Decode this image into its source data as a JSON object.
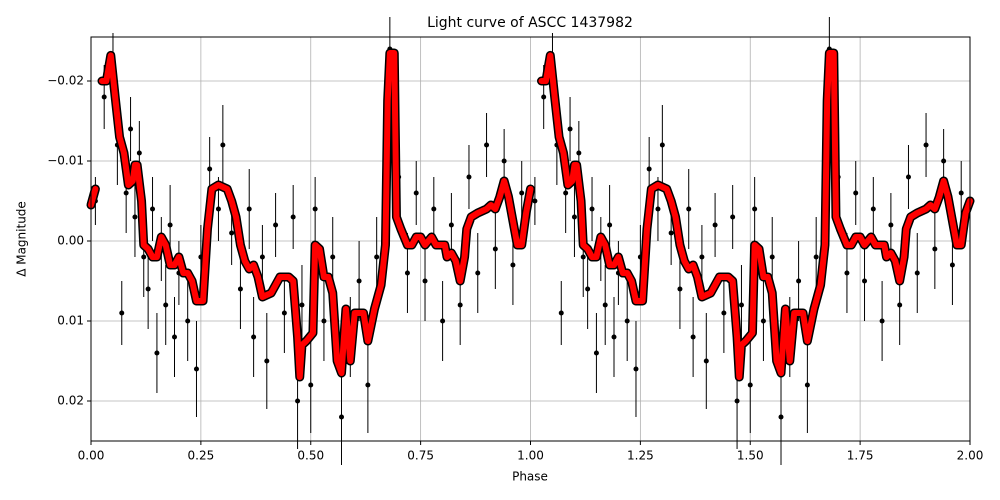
{
  "chart_data": {
    "type": "scatter",
    "title": "Light curve of ASCC 1437982",
    "x_label": "Phase",
    "y_label": "Δ Magnitude",
    "xlim": [
      0,
      2
    ],
    "ylim": [
      -0.0255,
      0.025
    ],
    "y_inverted": true,
    "grid": true,
    "xticks": [
      {
        "value": 0,
        "label": "0.00"
      },
      {
        "value": 0.25,
        "label": "0.25"
      },
      {
        "value": 0.5,
        "label": "0.50"
      },
      {
        "value": 0.75,
        "label": "0.75"
      },
      {
        "value": 1,
        "label": "1.00"
      },
      {
        "value": 1.25,
        "label": "1.25"
      },
      {
        "value": 1.5,
        "label": "1.50"
      },
      {
        "value": 1.75,
        "label": "1.75"
      },
      {
        "value": 2,
        "label": "2.00"
      }
    ],
    "yticks": [
      {
        "value": -0.02,
        "label": "−0.02"
      },
      {
        "value": -0.01,
        "label": "−0.01"
      },
      {
        "value": 0,
        "label": "0.00"
      },
      0.01,
      0.02
    ],
    "points": {
      "color": "#000000",
      "x": [
        0.01,
        0.03,
        0.05,
        0.06,
        0.07,
        0.08,
        0.09,
        0.1,
        0.11,
        0.12,
        0.13,
        0.14,
        0.15,
        0.16,
        0.17,
        0.18,
        0.19,
        0.2,
        0.22,
        0.24,
        0.25,
        0.27,
        0.29,
        0.3,
        0.32,
        0.34,
        0.36,
        0.37,
        0.39,
        0.4,
        0.42,
        0.44,
        0.46,
        0.47,
        0.48,
        0.5,
        0.51,
        0.53,
        0.55,
        0.57,
        0.59,
        0.61,
        0.63,
        0.65,
        0.67,
        0.68,
        0.7,
        0.72,
        0.74,
        0.76,
        0.78,
        0.8,
        0.82,
        0.84,
        0.86,
        0.88,
        0.9,
        0.92,
        0.94,
        0.96,
        0.98,
        1.01,
        1.03,
        1.05,
        1.06,
        1.07,
        1.08,
        1.09,
        1.1,
        1.11,
        1.12,
        1.13,
        1.14,
        1.15,
        1.16,
        1.17,
        1.18,
        1.19,
        1.2,
        1.22,
        1.24,
        1.25,
        1.27,
        1.29,
        1.3,
        1.32,
        1.34,
        1.36,
        1.37,
        1.39,
        1.4,
        1.42,
        1.44,
        1.46,
        1.47,
        1.48,
        1.5,
        1.51,
        1.53,
        1.55,
        1.57,
        1.59,
        1.61,
        1.63,
        1.65,
        1.67,
        1.68,
        1.7,
        1.72,
        1.74,
        1.76,
        1.78,
        1.8,
        1.82,
        1.84,
        1.86,
        1.88,
        1.9,
        1.92,
        1.94,
        1.96,
        1.98
      ],
      "values": [
        -0.005,
        -0.018,
        -0.022,
        -0.012,
        0.009,
        -0.006,
        -0.014,
        -0.003,
        -0.011,
        0.002,
        0.006,
        -0.004,
        0.014,
        0.001,
        0.008,
        -0.002,
        0.012,
        0.004,
        0.01,
        0.016,
        0.002,
        -0.009,
        -0.004,
        -0.012,
        -0.001,
        0.006,
        -0.004,
        0.012,
        0.002,
        0.015,
        -0.002,
        0.009,
        -0.003,
        0.02,
        0.008,
        0.018,
        -0.004,
        0.01,
        0.002,
        0.022,
        0.012,
        0.005,
        0.018,
        0.002,
        -0.008,
        -0.024,
        -0.008,
        0.004,
        -0.006,
        0.005,
        -0.004,
        0.01,
        -0.002,
        0.008,
        -0.008,
        0.004,
        -0.012,
        0.001,
        -0.01,
        0.003,
        -0.006,
        -0.005,
        -0.018,
        -0.022,
        -0.012,
        0.009,
        -0.006,
        -0.014,
        -0.003,
        -0.011,
        0.002,
        0.006,
        -0.004,
        0.014,
        0.001,
        0.008,
        -0.002,
        0.012,
        0.004,
        0.01,
        0.016,
        0.002,
        -0.009,
        -0.004,
        -0.012,
        -0.001,
        0.006,
        -0.004,
        0.012,
        0.002,
        0.015,
        -0.002,
        0.009,
        -0.003,
        0.02,
        0.008,
        0.018,
        -0.004,
        0.01,
        0.002,
        0.022,
        0.012,
        0.005,
        0.018,
        0.002,
        -0.008,
        -0.024,
        -0.008,
        0.004,
        -0.006,
        0.005,
        -0.004,
        0.01,
        -0.002,
        0.008,
        -0.008,
        0.004,
        -0.012,
        0.001,
        -0.01,
        0.003,
        -0.006
      ],
      "errors": [
        0.003,
        0.004,
        0.004,
        0.005,
        0.004,
        0.005,
        0.004,
        0.005,
        0.004,
        0.005,
        0.005,
        0.004,
        0.005,
        0.004,
        0.005,
        0.005,
        0.005,
        0.004,
        0.005,
        0.006,
        0.004,
        0.004,
        0.004,
        0.005,
        0.004,
        0.005,
        0.005,
        0.005,
        0.004,
        0.006,
        0.004,
        0.005,
        0.004,
        0.006,
        0.005,
        0.006,
        0.004,
        0.005,
        0.005,
        0.006,
        0.005,
        0.005,
        0.006,
        0.005,
        0.004,
        0.004,
        0.004,
        0.005,
        0.004,
        0.005,
        0.004,
        0.005,
        0.004,
        0.005,
        0.004,
        0.005,
        0.004,
        0.005,
        0.004,
        0.005,
        0.004,
        0.003,
        0.004,
        0.004,
        0.005,
        0.004,
        0.005,
        0.004,
        0.005,
        0.004,
        0.005,
        0.005,
        0.004,
        0.005,
        0.004,
        0.005,
        0.005,
        0.005,
        0.004,
        0.005,
        0.006,
        0.004,
        0.004,
        0.004,
        0.005,
        0.004,
        0.005,
        0.005,
        0.005,
        0.004,
        0.006,
        0.004,
        0.005,
        0.004,
        0.006,
        0.005,
        0.006,
        0.004,
        0.005,
        0.005,
        0.006,
        0.005,
        0.005,
        0.006,
        0.005,
        0.004,
        0.004,
        0.004,
        0.005,
        0.004,
        0.005,
        0.004,
        0.005,
        0.004,
        0.005,
        0.004,
        0.005,
        0.004,
        0.005,
        0.004,
        0.005,
        0.004
      ]
    },
    "curve": {
      "color": "#ff0000",
      "edge_color": "#000000",
      "x": [
        0,
        0.01,
        0.018,
        0.025,
        0.035,
        0.045,
        0.055,
        0.065,
        0.075,
        0.085,
        0.095,
        0.1,
        0.105,
        0.115,
        0.12,
        0.13,
        0.14,
        0.15,
        0.16,
        0.17,
        0.18,
        0.19,
        0.2,
        0.21,
        0.22,
        0.23,
        0.24,
        0.255,
        0.265,
        0.275,
        0.29,
        0.31,
        0.32,
        0.33,
        0.34,
        0.35,
        0.36,
        0.37,
        0.38,
        0.39,
        0.41,
        0.42,
        0.43,
        0.45,
        0.46,
        0.47,
        0.475,
        0.48,
        0.49,
        0.505,
        0.51,
        0.52,
        0.53,
        0.54,
        0.55,
        0.56,
        0.57,
        0.58,
        0.59,
        0.6,
        0.62,
        0.63,
        0.645,
        0.66,
        0.67,
        0.675,
        0.68,
        0.69,
        0.695,
        0.705,
        0.72,
        0.73,
        0.74,
        0.75,
        0.76,
        0.775,
        0.785,
        0.795,
        0.805,
        0.81,
        0.82,
        0.83,
        0.84,
        0.85,
        0.855,
        0.865,
        0.88,
        0.9,
        0.91,
        0.92,
        0.93,
        0.94,
        0.95,
        0.96,
        0.97,
        0.98,
        0.99,
        1.0,
        1.018,
        1.025,
        1.035,
        1.045,
        1.055,
        1.065,
        1.075,
        1.085,
        1.095,
        1.1,
        1.105,
        1.115,
        1.12,
        1.13,
        1.14,
        1.15,
        1.16,
        1.17,
        1.18,
        1.19,
        1.2,
        1.21,
        1.22,
        1.23,
        1.24,
        1.255,
        1.265,
        1.275,
        1.29,
        1.31,
        1.32,
        1.33,
        1.34,
        1.35,
        1.36,
        1.37,
        1.38,
        1.39,
        1.41,
        1.42,
        1.43,
        1.45,
        1.46,
        1.47,
        1.475,
        1.48,
        1.49,
        1.505,
        1.51,
        1.52,
        1.53,
        1.54,
        1.55,
        1.56,
        1.57,
        1.58,
        1.59,
        1.6,
        1.62,
        1.63,
        1.645,
        1.66,
        1.67,
        1.675,
        1.68,
        1.69,
        1.695,
        1.705,
        1.72,
        1.73,
        1.74,
        1.75,
        1.76,
        1.775,
        1.785,
        1.795,
        1.805,
        1.81,
        1.82,
        1.83,
        1.84,
        1.85,
        1.855,
        1.865,
        1.88,
        1.9,
        1.91,
        1.92,
        1.93,
        1.94,
        1.95,
        1.96,
        1.97,
        1.98,
        1.99,
        2.0
      ],
      "values": [
        -0.0045,
        -0.0065,
        null,
        -0.02,
        -0.02,
        -0.0232,
        -0.018,
        -0.013,
        -0.011,
        -0.007,
        -0.0075,
        -0.0095,
        -0.0095,
        -0.005,
        0.0005,
        0.001,
        0.002,
        0.002,
        -0.0005,
        0.0005,
        0.003,
        0.003,
        0.002,
        0.004,
        0.004,
        0.005,
        0.0075,
        0.0075,
        -0.0015,
        -0.0065,
        -0.007,
        -0.0065,
        -0.005,
        -0.003,
        0.0005,
        0.0025,
        0.0035,
        0.003,
        0.0045,
        0.007,
        0.0065,
        0.0055,
        0.0045,
        0.0045,
        0.005,
        0.012,
        0.017,
        0.013,
        0.0125,
        0.0115,
        0.0005,
        0.001,
        0.0045,
        0.0045,
        0.0065,
        0.015,
        0.0165,
        0.0085,
        0.015,
        0.009,
        0.009,
        0.0125,
        0.0085,
        0.0055,
        0.0005,
        -0.0175,
        -0.0235,
        -0.0235,
        -0.003,
        -0.0015,
        0.0005,
        0.0005,
        -0.0005,
        -0.0005,
        0.0005,
        -0.0005,
        0.0005,
        0.0005,
        0.0005,
        0.002,
        0.0015,
        0.0025,
        0.005,
        0.002,
        -0.0015,
        -0.003,
        -0.0035,
        -0.004,
        -0.0045,
        -0.004,
        -0.0055,
        -0.0075,
        -0.0055,
        -0.0025,
        0.0005,
        0.0005,
        -0.0035,
        -0.0065,
        null,
        -0.02,
        -0.02,
        -0.0232,
        -0.018,
        -0.013,
        -0.011,
        -0.007,
        -0.0075,
        -0.0095,
        -0.0095,
        -0.005,
        0.0005,
        0.001,
        0.002,
        0.002,
        -0.0005,
        0.0005,
        0.003,
        0.003,
        0.002,
        0.004,
        0.004,
        0.005,
        0.0075,
        0.0075,
        -0.0015,
        -0.0065,
        -0.007,
        -0.0065,
        -0.005,
        -0.003,
        0.0005,
        0.0025,
        0.0035,
        0.003,
        0.0045,
        0.007,
        0.0065,
        0.0055,
        0.0045,
        0.0045,
        0.005,
        0.012,
        0.017,
        0.013,
        0.0125,
        0.0115,
        0.0005,
        0.001,
        0.0045,
        0.0045,
        0.0065,
        0.015,
        0.0165,
        0.0085,
        0.015,
        0.009,
        0.009,
        0.0125,
        0.0085,
        0.0055,
        0.0005,
        -0.0175,
        -0.0235,
        -0.0235,
        -0.003,
        -0.0015,
        0.0005,
        0.0005,
        -0.0005,
        -0.0005,
        0.0005,
        -0.0005,
        0.0005,
        0.0005,
        0.0005,
        0.002,
        0.0015,
        0.0025,
        0.005,
        0.002,
        -0.0015,
        -0.003,
        -0.0035,
        -0.004,
        -0.0045,
        -0.004,
        -0.0055,
        -0.0075,
        -0.0055,
        -0.0025,
        0.0005,
        0.0005,
        -0.0035,
        -0.005
      ]
    }
  }
}
